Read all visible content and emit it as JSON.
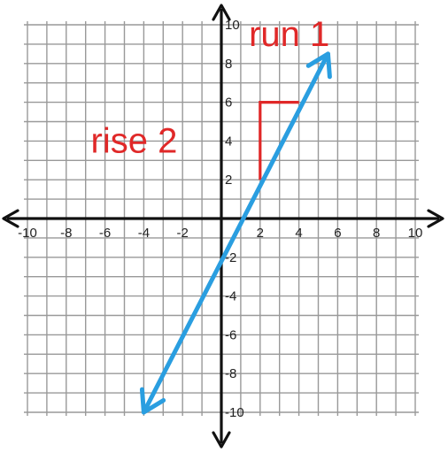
{
  "chart_data": {
    "type": "line",
    "title": "",
    "xlabel": "",
    "ylabel": "",
    "xlim": [
      -10,
      10
    ],
    "ylim": [
      -10,
      10
    ],
    "grid": true,
    "x_ticks": [
      -10,
      -8,
      -6,
      -4,
      -2,
      2,
      4,
      6,
      8,
      10
    ],
    "y_ticks": [
      10,
      8,
      6,
      4,
      2,
      -2,
      -4,
      -6,
      -8,
      -10
    ],
    "x_tick_labels": [
      "-10",
      "-8",
      "-6",
      "-4",
      "-2",
      "2",
      "4",
      "6",
      "8",
      "10"
    ],
    "y_tick_labels": [
      "10",
      "8",
      "6",
      "4",
      "2",
      "-2",
      "-4",
      "-6",
      "-8",
      "-10"
    ],
    "series": [
      {
        "type": "line",
        "x": [
          -4,
          5.5
        ],
        "y": [
          -10,
          8.5
        ],
        "color": "#2a9ee0",
        "arrows": "both"
      }
    ],
    "slope_triangle": {
      "corner": [
        2,
        6
      ],
      "rise_from": [
        2,
        2
      ],
      "run_to": [
        4,
        6
      ],
      "color": "#e02828"
    },
    "annotations": [
      {
        "text": "run 1",
        "anchor": [
          3.5,
          8.9
        ],
        "color": "#e02828"
      },
      {
        "text": "rise 2",
        "anchor": [
          -4.5,
          3.4
        ],
        "color": "#e02828"
      }
    ]
  },
  "colors": {
    "axis": "#111111",
    "grid": "#999999",
    "line": "#2a9ee0",
    "annotation": "#e02828"
  }
}
